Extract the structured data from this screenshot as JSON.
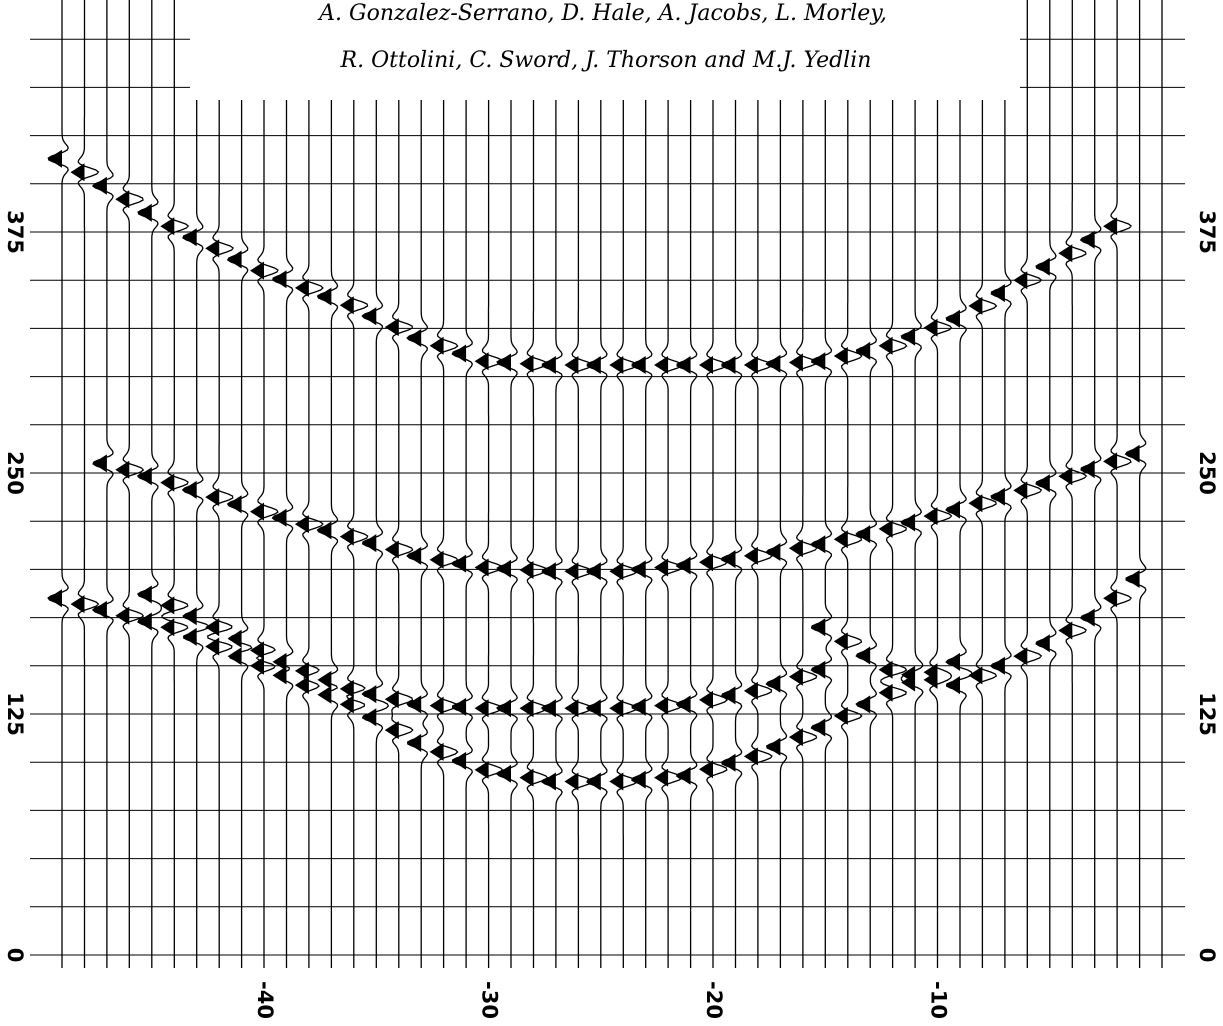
{
  "credits": {
    "line1": "A. Gonzalez-Serrano, D. Hale, A. Jacobs, L. Morley,",
    "line2": "R. Ottolini, C. Sword, J. Thorson and M.J. Yedlin"
  },
  "chart_data": {
    "type": "seismic-wiggle",
    "title": "",
    "xlabel": "",
    "ylabel": "",
    "x_ticks": [
      -40,
      -30,
      -20,
      -10
    ],
    "x_tick_labels": [
      "-40",
      "-30",
      "-20",
      "-10"
    ],
    "y_ticks": [
      0,
      125,
      250,
      375
    ],
    "y_tick_labels": [
      "0",
      "125",
      "250",
      "375"
    ],
    "x_range": [
      -49,
      0
    ],
    "y_range": [
      0,
      475
    ],
    "trace_count": 50,
    "grid": true,
    "events": [
      {
        "x": [
          -49,
          -44,
          -40,
          -36,
          -33,
          -30,
          -27,
          -24,
          -21,
          -18,
          -15,
          -12,
          -9,
          -6,
          -2
        ],
        "y": [
          413,
          378,
          355,
          337,
          320,
          308,
          306,
          306,
          306,
          306,
          308,
          316,
          330,
          350,
          378
        ]
      },
      {
        "x": [
          -47,
          -44,
          -40,
          -36,
          -33,
          -30,
          -27,
          -24,
          -21,
          -18,
          -15,
          -12,
          -9,
          -6,
          -3,
          -1
        ],
        "y": [
          255,
          245,
          230,
          217,
          207,
          201,
          199,
          199,
          202,
          207,
          213,
          221,
          231,
          241,
          252,
          260
        ]
      },
      {
        "x": [
          -49,
          -44,
          -40,
          -36,
          -33,
          -30,
          -27,
          -24,
          -21,
          -18,
          -15,
          -12,
          -9
        ],
        "y": [
          185,
          170,
          150,
          130,
          110,
          96,
          90,
          90,
          93,
          103,
          118,
          136,
          152
        ]
      },
      {
        "x": [
          -45,
          -42,
          -39,
          -36,
          -33,
          -30,
          -27,
          -24,
          -21,
          -18,
          -15
        ],
        "y": [
          187,
          170,
          152,
          138,
          130,
          128,
          128,
          128,
          130,
          137,
          148
        ]
      },
      {
        "x": [
          -15,
          -12,
          -9,
          -6,
          -3,
          -1
        ],
        "y": [
          170,
          148,
          140,
          155,
          175,
          195
        ]
      }
    ]
  }
}
